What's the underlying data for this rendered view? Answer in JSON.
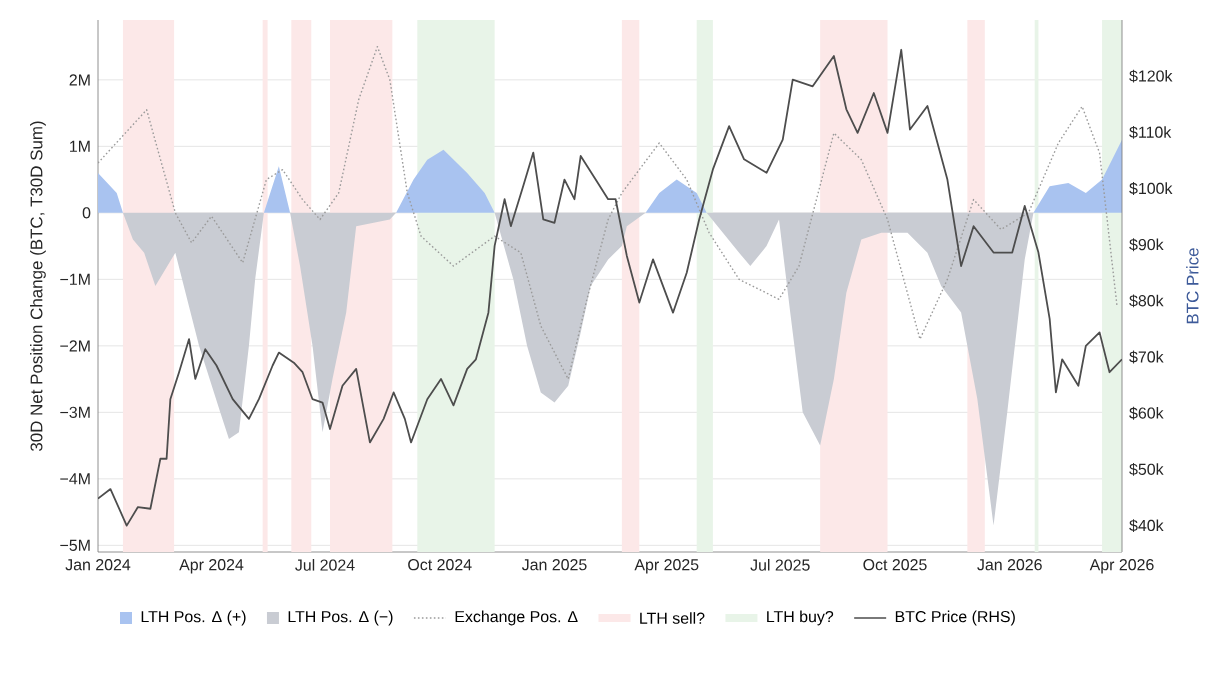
{
  "chart_data": {
    "type": "line",
    "ylabel": "30D Net Position Change (BTC, T30D Sum)",
    "y2label": "BTC Price",
    "xlim": [
      "2024-01-01",
      "2026-04-01"
    ],
    "xticks": [
      {
        "value": "2024-01-01",
        "label": "Jan 2024"
      },
      {
        "value": "2024-04-01",
        "label": "Apr 2024"
      },
      {
        "value": "2024-07-01",
        "label": "Jul 2024"
      },
      {
        "value": "2024-10-01",
        "label": "Oct 2024"
      },
      {
        "value": "2025-01-01",
        "label": "Jan 2025"
      },
      {
        "value": "2025-04-01",
        "label": "Apr 2025"
      },
      {
        "value": "2025-07-01",
        "label": "Jul 2025"
      },
      {
        "value": "2025-10-01",
        "label": "Oct 2025"
      },
      {
        "value": "2026-01-01",
        "label": "Jan 2026"
      },
      {
        "value": "2026-04-01",
        "label": "Apr 2026"
      }
    ],
    "ylim": [
      -5100000,
      2900000
    ],
    "yticks": [
      {
        "value": -5000000,
        "label": "−5M"
      },
      {
        "value": -4000000,
        "label": "−4M"
      },
      {
        "value": -3000000,
        "label": "−3M"
      },
      {
        "value": -2000000,
        "label": "−2M"
      },
      {
        "value": -1000000,
        "label": "−1M"
      },
      0,
      {
        "value": 1000000,
        "label": "1M"
      },
      {
        "value": 2000000,
        "label": "2M"
      }
    ],
    "y2lim": [
      35300,
      130000
    ],
    "y2ticks": [
      {
        "value": 40000,
        "label": "$40k"
      },
      {
        "value": 50000,
        "label": "$50k"
      },
      {
        "value": 60000,
        "label": "$60k"
      },
      {
        "value": 70000,
        "label": "$70k"
      },
      {
        "value": 80000,
        "label": "$80k"
      },
      {
        "value": 90000,
        "label": "$90k"
      },
      {
        "value": 100000,
        "label": "$100k"
      },
      {
        "value": 110000,
        "label": "$110k"
      },
      {
        "value": 120000,
        "label": "$120k"
      }
    ],
    "grid": "y",
    "legend": "bottom",
    "bands": [
      {
        "axis": "x",
        "from": "2024-01-21",
        "to": "2024-03-02",
        "label": "LTH sell?",
        "color": "#fce8e8"
      },
      {
        "axis": "x",
        "from": "2024-05-12",
        "to": "2024-05-16",
        "color": "#fce8e8"
      },
      {
        "axis": "x",
        "from": "2024-06-04",
        "to": "2024-06-20",
        "color": "#fce8e8"
      },
      {
        "axis": "x",
        "from": "2024-07-05",
        "to": "2024-08-24",
        "color": "#fce8e8"
      },
      {
        "axis": "x",
        "from": "2024-09-13",
        "to": "2024-11-14",
        "label": "LTH buy?",
        "color": "#e8f4e8"
      },
      {
        "axis": "x",
        "from": "2025-02-24",
        "to": "2025-03-10",
        "color": "#fce8e8"
      },
      {
        "axis": "x",
        "from": "2025-04-25",
        "to": "2025-05-08",
        "color": "#e8f4e8"
      },
      {
        "axis": "x",
        "from": "2025-08-02",
        "to": "2025-09-25",
        "color": "#fce8e8"
      },
      {
        "axis": "x",
        "from": "2025-11-28",
        "to": "2025-12-12",
        "color": "#fce8e8"
      },
      {
        "axis": "x",
        "from": "2026-01-21",
        "to": "2026-01-24",
        "color": "#e8f4e8"
      },
      {
        "axis": "x",
        "from": "2026-03-16",
        "to": "2026-04-01",
        "color": "#e8f4e8"
      }
    ],
    "series": [
      {
        "name": "LTH Pos. Δ (+)",
        "type": "area",
        "color": "#a9c3f0",
        "x": [
          "2024-01-01",
          "2024-01-16",
          "2024-01-21",
          "2024-01-29",
          "2024-02-07",
          "2024-02-16",
          "2024-03-03",
          "2024-03-22",
          "2024-04-08",
          "2024-04-15",
          "2024-04-23",
          "2024-05-01",
          "2024-05-06",
          "2024-05-13",
          "2024-05-25",
          "2024-06-03",
          "2024-06-11",
          "2024-06-21",
          "2024-06-29",
          "2024-07-07",
          "2024-07-18",
          "2024-07-26",
          "2024-08-09",
          "2024-08-22",
          "2024-08-27",
          "2024-09-10",
          "2024-09-21",
          "2024-10-04",
          "2024-10-23",
          "2024-11-06",
          "2024-11-14",
          "2024-11-29",
          "2024-12-10",
          "2024-12-21",
          "2025-01-01",
          "2025-01-12",
          "2025-01-22",
          "2025-01-30",
          "2025-02-13",
          "2025-02-24",
          "2025-02-28",
          "2025-03-15",
          "2025-03-26",
          "2025-04-09",
          "2025-04-25",
          "2025-05-03",
          "2025-05-16",
          "2025-05-29",
          "2025-06-07",
          "2025-06-20",
          "2025-06-30",
          "2025-07-09",
          "2025-07-19",
          "2025-08-02",
          "2025-08-13",
          "2025-08-23",
          "2025-09-04",
          "2025-09-20",
          "2025-10-11",
          "2025-10-27",
          "2025-11-07",
          "2025-11-23",
          "2025-12-06",
          "2025-12-19",
          "2025-12-30",
          "2026-01-13",
          "2026-01-20",
          "2026-02-02",
          "2026-02-17",
          "2026-03-03",
          "2026-03-16",
          "2026-03-24",
          "2026-04-01"
        ],
        "values": [
          600000,
          300000,
          0,
          0,
          0,
          0,
          0,
          0,
          0,
          0,
          0,
          0,
          0,
          0,
          700000,
          0,
          0,
          0,
          0,
          0,
          0,
          0,
          0,
          0,
          0,
          500000,
          800000,
          950000,
          600000,
          300000,
          0,
          0,
          0,
          0,
          0,
          0,
          0,
          0,
          0,
          0,
          0,
          0,
          300000,
          500000,
          300000,
          0,
          0,
          0,
          0,
          0,
          0,
          0,
          0,
          0,
          0,
          0,
          0,
          0,
          0,
          0,
          0,
          0,
          0,
          0,
          0,
          0,
          0,
          400000,
          450000,
          300000,
          500000,
          800000,
          1100000
        ]
      },
      {
        "name": "LTH Pos. Δ (−)",
        "type": "area",
        "color": "#c9ccd3",
        "x": [
          "2024-01-01",
          "2024-01-16",
          "2024-01-21",
          "2024-01-29",
          "2024-02-07",
          "2024-02-16",
          "2024-03-03",
          "2024-03-22",
          "2024-04-08",
          "2024-04-15",
          "2024-04-23",
          "2024-05-01",
          "2024-05-06",
          "2024-05-13",
          "2024-05-25",
          "2024-06-03",
          "2024-06-11",
          "2024-06-21",
          "2024-06-29",
          "2024-07-07",
          "2024-07-18",
          "2024-07-26",
          "2024-08-09",
          "2024-08-22",
          "2024-08-27",
          "2024-09-10",
          "2024-09-21",
          "2024-10-04",
          "2024-10-23",
          "2024-11-06",
          "2024-11-14",
          "2024-11-29",
          "2024-12-10",
          "2024-12-21",
          "2025-01-01",
          "2025-01-12",
          "2025-01-22",
          "2025-01-30",
          "2025-02-13",
          "2025-02-24",
          "2025-02-28",
          "2025-03-15",
          "2025-03-26",
          "2025-04-09",
          "2025-04-25",
          "2025-05-03",
          "2025-05-16",
          "2025-05-29",
          "2025-06-07",
          "2025-06-20",
          "2025-06-30",
          "2025-07-09",
          "2025-07-19",
          "2025-08-02",
          "2025-08-13",
          "2025-08-23",
          "2025-09-04",
          "2025-09-20",
          "2025-10-11",
          "2025-10-27",
          "2025-11-07",
          "2025-11-23",
          "2025-12-06",
          "2025-12-19",
          "2025-12-30",
          "2026-01-13",
          "2026-01-20",
          "2026-02-02",
          "2026-02-17",
          "2026-03-03",
          "2026-03-16",
          "2026-03-24",
          "2026-04-01"
        ],
        "values": [
          0,
          0,
          0,
          -400000,
          -600000,
          -1100000,
          -600000,
          -2000000,
          -3000000,
          -3400000,
          -3300000,
          -2000000,
          -1000000,
          0,
          0,
          0,
          -800000,
          -2000000,
          -3300000,
          -2500000,
          -1500000,
          -200000,
          -150000,
          -100000,
          0,
          0,
          0,
          0,
          0,
          0,
          0,
          -1000000,
          -2000000,
          -2700000,
          -2850000,
          -2600000,
          -1800000,
          -1100000,
          -700000,
          -500000,
          -200000,
          0,
          0,
          0,
          0,
          0,
          -300000,
          -600000,
          -800000,
          -500000,
          -100000,
          -1500000,
          -3000000,
          -3500000,
          -2500000,
          -1200000,
          -400000,
          -300000,
          -300000,
          -600000,
          -1100000,
          -1500000,
          -2800000,
          -4700000,
          -3000000,
          -700000,
          0,
          0,
          0,
          0,
          0,
          0,
          0
        ]
      },
      {
        "name": "Exchange Pos. Δ",
        "line_style": "dotted",
        "color": "#9a9a9a",
        "x": [
          "2024-01-01",
          "2024-02-09",
          "2024-03-03",
          "2024-03-16",
          "2024-04-01",
          "2024-04-26",
          "2024-05-15",
          "2024-05-28",
          "2024-06-13",
          "2024-06-27",
          "2024-07-12",
          "2024-07-28",
          "2024-08-12",
          "2024-08-22",
          "2024-09-05",
          "2024-09-16",
          "2024-10-12",
          "2024-11-14",
          "2024-12-05",
          "2024-12-21",
          "2025-01-12",
          "2025-01-27",
          "2025-02-13",
          "2025-02-24",
          "2025-03-26",
          "2025-04-17",
          "2025-05-05",
          "2025-05-29",
          "2025-06-30",
          "2025-07-16",
          "2025-08-13",
          "2025-09-04",
          "2025-09-25",
          "2025-10-21",
          "2025-11-12",
          "2025-12-03",
          "2025-12-25",
          "2026-01-16",
          "2026-02-09",
          "2026-02-28",
          "2026-03-14",
          "2026-03-28"
        ],
        "values": [
          750000,
          1550000,
          0,
          -450000,
          -50000,
          -750000,
          500000,
          650000,
          200000,
          -100000,
          300000,
          1700000,
          2500000,
          2000000,
          300000,
          -350000,
          -800000,
          -350000,
          -600000,
          -1700000,
          -2500000,
          -1300000,
          -100000,
          300000,
          1050000,
          500000,
          -300000,
          -1000000,
          -1300000,
          -800000,
          1200000,
          800000,
          -100000,
          -1900000,
          -1000000,
          200000,
          -250000,
          0,
          1050000,
          1600000,
          900000,
          -1400000
        ]
      },
      {
        "name": "BTC Price (RHS)",
        "axis": "y2",
        "line_style": "solid",
        "color": "#4d4d4d",
        "x": [
          "2024-01-01",
          "2024-01-11",
          "2024-01-24",
          "2024-02-02",
          "2024-02-12",
          "2024-02-20",
          "2024-02-25",
          "2024-02-28",
          "2024-03-06",
          "2024-03-14",
          "2024-03-19",
          "2024-03-27",
          "2024-04-05",
          "2024-04-18",
          "2024-05-01",
          "2024-05-09",
          "2024-05-20",
          "2024-05-25",
          "2024-06-06",
          "2024-06-13",
          "2024-06-21",
          "2024-06-29",
          "2024-07-05",
          "2024-07-15",
          "2024-07-26",
          "2024-08-06",
          "2024-08-17",
          "2024-08-25",
          "2024-09-03",
          "2024-09-08",
          "2024-09-21",
          "2024-10-02",
          "2024-10-12",
          "2024-10-23",
          "2024-10-30",
          "2024-11-09",
          "2024-11-14",
          "2024-11-22",
          "2024-11-27",
          "2024-12-07",
          "2024-12-15",
          "2024-12-23",
          "2025-01-01",
          "2025-01-09",
          "2025-01-17",
          "2025-01-22",
          "2025-02-03",
          "2025-02-13",
          "2025-02-19",
          "2025-02-28",
          "2025-03-10",
          "2025-03-21",
          "2025-04-06",
          "2025-04-17",
          "2025-04-27",
          "2025-05-08",
          "2025-05-21",
          "2025-06-02",
          "2025-06-20",
          "2025-07-03",
          "2025-07-11",
          "2025-07-27",
          "2025-08-13",
          "2025-08-23",
          "2025-09-01",
          "2025-09-14",
          "2025-09-25",
          "2025-10-06",
          "2025-10-13",
          "2025-10-27",
          "2025-11-12",
          "2025-11-23",
          "2025-12-03",
          "2025-12-19",
          "2026-01-03",
          "2026-01-13",
          "2026-01-24",
          "2026-02-02",
          "2026-02-07",
          "2026-02-12",
          "2026-02-25",
          "2026-03-03",
          "2026-03-14",
          "2026-03-22",
          "2026-04-01"
        ],
        "values": [
          44800,
          46500,
          40000,
          43300,
          43000,
          51900,
          51900,
          62500,
          67300,
          73200,
          66100,
          71400,
          68500,
          62500,
          59000,
          62500,
          68500,
          70800,
          69000,
          67300,
          62500,
          61900,
          57200,
          64900,
          67900,
          54800,
          59000,
          63700,
          59000,
          54800,
          62500,
          66100,
          61400,
          67900,
          69600,
          77900,
          89800,
          98100,
          93300,
          100500,
          106400,
          94500,
          93900,
          101600,
          98100,
          105800,
          101600,
          98100,
          98100,
          88000,
          79700,
          87400,
          77900,
          85000,
          94500,
          103400,
          111100,
          105200,
          102800,
          108700,
          119400,
          118200,
          123600,
          114100,
          109900,
          117000,
          109900,
          124700,
          110500,
          114700,
          101600,
          86200,
          93300,
          88600,
          88600,
          96900,
          88600,
          76800,
          63700,
          69600,
          64900,
          72000,
          74400,
          67300,
          69600
        ]
      }
    ]
  }
}
